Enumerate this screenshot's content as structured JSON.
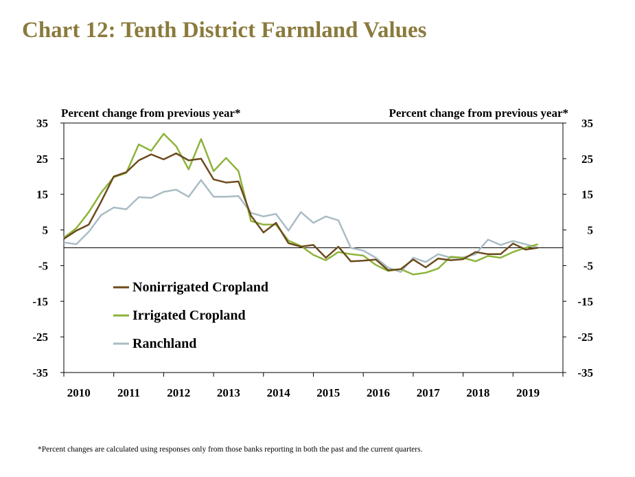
{
  "title": "Chart 12: Tenth District Farmland Values",
  "footnote": "*Percent changes are calculated using responses only from those banks reporting in both the past and the current quarters.",
  "colors": {
    "title": "#8a7a3c",
    "nonirrigated": "#6b4a1c",
    "irrigated": "#8db33a",
    "ranchland": "#a9bcc4"
  },
  "chart_data": {
    "type": "line",
    "ylabel_left": "Percent change from previous year*",
    "ylabel_right": "Percent change from previous year*",
    "ylim": [
      -35,
      35
    ],
    "yticks": [
      35,
      25,
      15,
      5,
      -5,
      -15,
      -25,
      -35
    ],
    "xlim": [
      2010,
      2020
    ],
    "xticks": [
      "2010",
      "2011",
      "2012",
      "2013",
      "2014",
      "2015",
      "2016",
      "2017",
      "2018",
      "2019"
    ],
    "grid": false,
    "legend_position": "lower-left",
    "start": "2010 Q1",
    "frequency": "quarterly",
    "series": [
      {
        "name": "Nonirrigated Cropland",
        "color": "#6b4a1c",
        "values": [
          2.5,
          4.8,
          6.5,
          13,
          20,
          21.2,
          24.5,
          26.2,
          24.8,
          26.5,
          24.5,
          25,
          19.2,
          18.3,
          18.6,
          9,
          4.3,
          7,
          1.3,
          0.3,
          0.8,
          -2.8,
          0.3,
          -3.8,
          -3.6,
          -3.3,
          -6.3,
          -6,
          -3.3,
          -5.5,
          -3,
          -3.5,
          -3.2,
          -1.2,
          -1.8,
          -1.8,
          1.2,
          -0.5,
          0
        ]
      },
      {
        "name": "Irrigated Cropland",
        "color": "#8db33a",
        "values": [
          2.8,
          5.5,
          10,
          15.5,
          19.8,
          21,
          29,
          27.2,
          32,
          28.5,
          22,
          30.5,
          21.5,
          25.2,
          21.5,
          7.5,
          6.5,
          6.5,
          2,
          0.5,
          -2,
          -3.5,
          -1.2,
          -1.8,
          -2.2,
          -4.8,
          -6.5,
          -6,
          -7.5,
          -7,
          -5.8,
          -2.5,
          -2.8,
          -3.8,
          -2.3,
          -2.8,
          -1.2,
          0,
          1
        ]
      },
      {
        "name": "Ranchland",
        "color": "#a9bcc4",
        "values": [
          1.5,
          1,
          4.5,
          9.2,
          11.3,
          10.8,
          14.2,
          14,
          15.7,
          16.3,
          14.3,
          19,
          14.3,
          14.3,
          14.5,
          9.8,
          8.8,
          9.5,
          4.8,
          10,
          7,
          8.8,
          7.7,
          0,
          -0.8,
          -2.8,
          -5.6,
          -6.8,
          -2.8,
          -4,
          -1.8,
          -2.8,
          -2.7,
          -1.8,
          2.3,
          0.8,
          1.9,
          1,
          0
        ]
      }
    ]
  }
}
